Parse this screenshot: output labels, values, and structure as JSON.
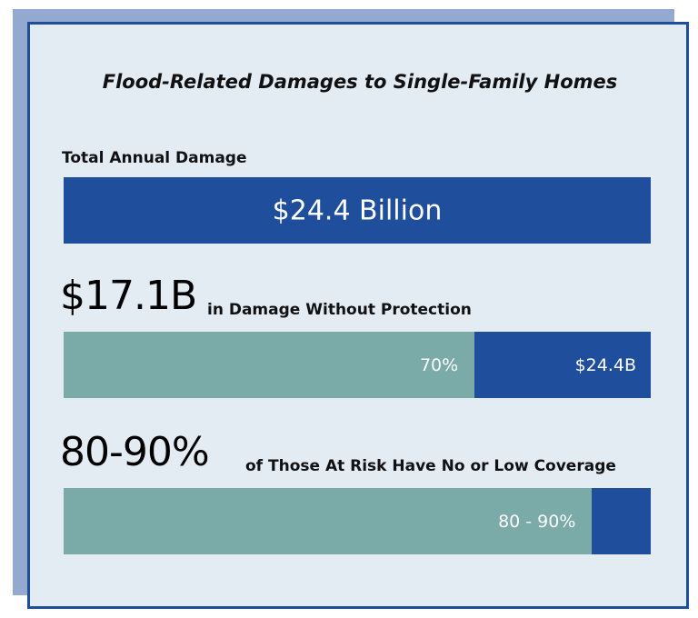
{
  "title": "Flood-Related Damages to Single-Family Homes",
  "sections": [
    {
      "label": "Total Annual Damage",
      "bar_text": "$24.4 Billion"
    },
    {
      "headline": "$17.1B",
      "label": "in Damage Without Protection",
      "share": {
        "value": 70,
        "label": "70%"
      },
      "total_label": "$24.4B"
    },
    {
      "headline": "80-90%",
      "label": "of Those At Risk Have No or Low Coverage",
      "share": {
        "value": 90,
        "label": "80 - 90%"
      }
    }
  ]
}
